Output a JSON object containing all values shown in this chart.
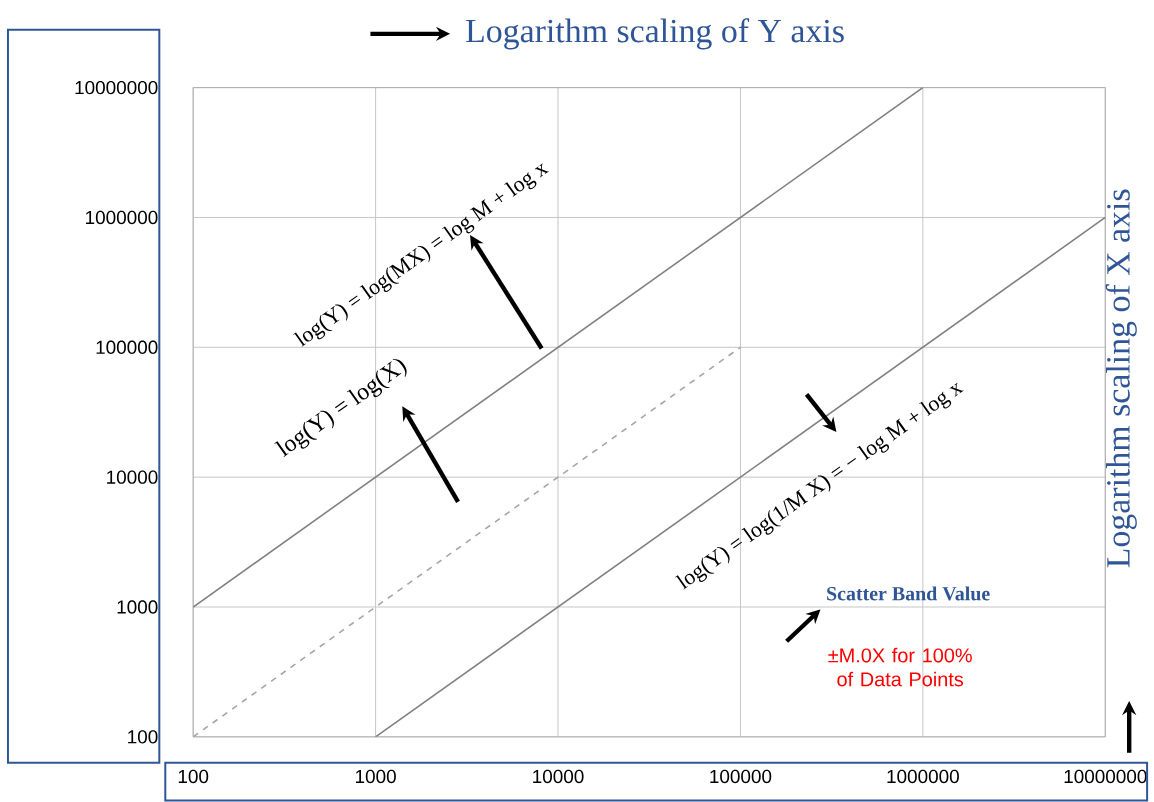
{
  "chart_data": {
    "type": "line",
    "log": "xy",
    "grid": true,
    "marker": "none",
    "xlim": [
      100,
      10000000
    ],
    "xticks": [
      100,
      1000,
      10000,
      100000,
      1000000,
      10000000
    ],
    "ylim": [
      100,
      10000000
    ],
    "yticks": [
      100,
      1000,
      10000,
      100000,
      1000000,
      10000000
    ],
    "series": [
      {
        "color": "#808080",
        "line_style": "solid",
        "x": [
          100,
          1000000
        ],
        "values": [
          1000,
          10000000
        ]
      },
      {
        "color": "#a6a6a6",
        "line_style": "dashed",
        "x": [
          100,
          100000
        ],
        "values": [
          100,
          100000
        ]
      },
      {
        "color": "#808080",
        "line_style": "solid",
        "x": [
          1000,
          10000000
        ],
        "values": [
          100,
          1000000
        ]
      }
    ],
    "annotations": [
      "Logarithm scaling of Y axis",
      "Logarithm scaling of X axis",
      "log(Y) = log(MX) = log M + log x",
      "log(Y) = log(X)",
      "log(Y) = log(1/M X) = − log M + log x",
      "Scatter Band Value",
      "±M.0X for 100% of Data Points"
    ]
  }
}
